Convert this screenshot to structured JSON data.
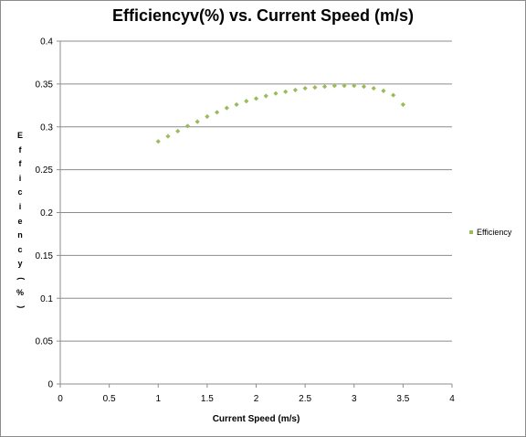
{
  "chart_data": {
    "type": "scatter",
    "title": "Efficiencyv(%) vs. Current Speed (m/s)",
    "xlabel": "Current Speed (m/s)",
    "ylabel": "Efficiency (%)",
    "xlim": [
      0,
      4
    ],
    "ylim": [
      0,
      0.4
    ],
    "x_ticks": [
      "0",
      "0.5",
      "1",
      "1.5",
      "2",
      "2.5",
      "3",
      "3.5",
      "4"
    ],
    "y_ticks": [
      "0",
      "0.05",
      "0.1",
      "0.15",
      "0.2",
      "0.25",
      "0.3",
      "0.35",
      "0.4"
    ],
    "grid": "horizontal",
    "legend_position": "right",
    "marker_color": "#9bbb59",
    "series": [
      {
        "name": "Efficiency",
        "x": [
          1.0,
          1.1,
          1.2,
          1.3,
          1.4,
          1.5,
          1.6,
          1.7,
          1.8,
          1.9,
          2.0,
          2.1,
          2.2,
          2.3,
          2.4,
          2.5,
          2.6,
          2.7,
          2.8,
          2.9,
          3.0,
          3.1,
          3.2,
          3.3,
          3.4,
          3.5
        ],
        "y": [
          0.283,
          0.289,
          0.295,
          0.301,
          0.306,
          0.312,
          0.317,
          0.322,
          0.326,
          0.33,
          0.333,
          0.336,
          0.339,
          0.341,
          0.343,
          0.345,
          0.346,
          0.347,
          0.348,
          0.348,
          0.348,
          0.347,
          0.345,
          0.342,
          0.337,
          0.326
        ]
      }
    ]
  }
}
